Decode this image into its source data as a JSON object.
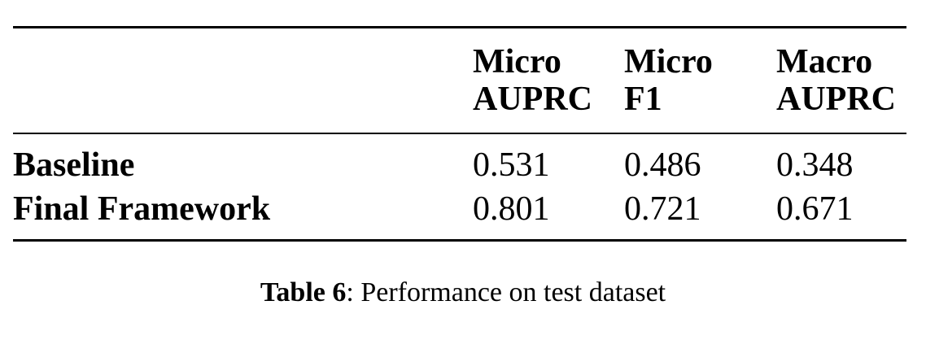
{
  "table": {
    "headers": [
      {
        "line1": "Micro",
        "line2": "AUPRC"
      },
      {
        "line1": "Micro",
        "line2": "F1"
      },
      {
        "line1": "Macro",
        "line2": "AUPRC"
      }
    ],
    "rows": [
      {
        "label": "Baseline",
        "values": [
          "0.531",
          "0.486",
          "0.348"
        ]
      },
      {
        "label": "Final Framework",
        "values": [
          "0.801",
          "0.721",
          "0.671"
        ]
      }
    ]
  },
  "caption": {
    "label": "Table 6",
    "text": ": Performance on test dataset"
  }
}
